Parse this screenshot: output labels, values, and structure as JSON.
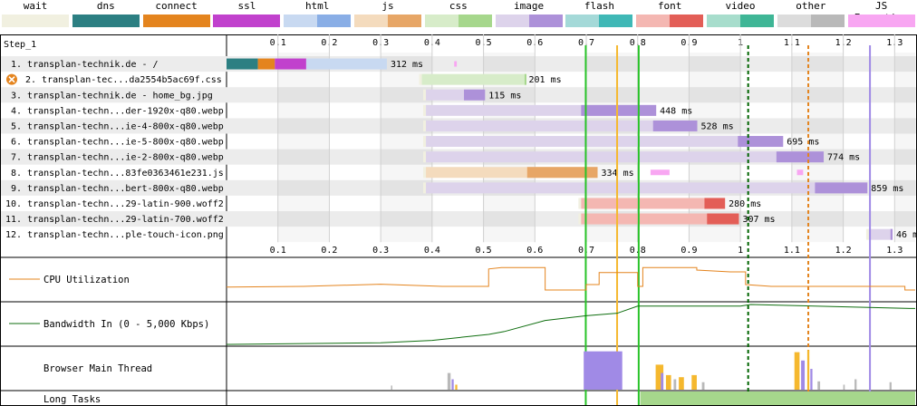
{
  "legend": [
    {
      "label": "wait",
      "light": "#f1f0e0",
      "dark": "#f1f0e0"
    },
    {
      "label": "dns",
      "light": "#2c7f82",
      "dark": "#2c7f82"
    },
    {
      "label": "connect",
      "light": "#e4841e",
      "dark": "#e4841e"
    },
    {
      "label": "ssl",
      "light": "#c141cd",
      "dark": "#c141cd"
    },
    {
      "label": "html",
      "light": "#c8d9f1",
      "dark": "#89aee6"
    },
    {
      "label": "js",
      "light": "#f4dbbd",
      "dark": "#e7a666"
    },
    {
      "label": "css",
      "light": "#d7ecc9",
      "dark": "#a6d78c"
    },
    {
      "label": "image",
      "light": "#ddd3eb",
      "dark": "#ad91d9"
    },
    {
      "label": "flash",
      "light": "#a4d9d8",
      "dark": "#3fb8b6"
    },
    {
      "label": "font",
      "light": "#f4b7b2",
      "dark": "#e35e57"
    },
    {
      "label": "video",
      "light": "#a7ddcc",
      "dark": "#3fb696"
    },
    {
      "label": "other",
      "light": "#dcdcdc",
      "dark": "#b9b9b9"
    },
    {
      "label": "JS Execution",
      "light": "#f8a6f2",
      "dark": "#f8a6f2"
    }
  ],
  "step_label": "Step_1",
  "chart_data": {
    "type": "bar",
    "title": "",
    "x_unit": "s",
    "xlim": [
      0,
      1.34
    ],
    "ticks": [
      "0.1",
      "0.2",
      "0.3",
      "0.4",
      "0.5",
      "0.6",
      "0.7",
      "0.8",
      "0.9",
      "1",
      "1.1",
      "1.2",
      "1.3"
    ],
    "requests": [
      {
        "num": "1.",
        "label": "transplan-technik.de - /",
        "type": "html",
        "start": 0.0,
        "end": 0.312,
        "duration": "312 ms",
        "dns": [
          0.0,
          0.061
        ],
        "connect": [
          0.061,
          0.094
        ],
        "ssl": [
          0.094,
          0.155
        ],
        "ttfb_end": 0.155,
        "error": false
      },
      {
        "num": "2.",
        "label": "transplan-tec...da2554b5ac69f.css",
        "type": "css",
        "start": 0.38,
        "end": 0.581,
        "duration": "201 ms",
        "ttfb_end": 0.58,
        "error": true
      },
      {
        "num": "3.",
        "label": "transplan-technik.de - home_bg.jpg",
        "type": "image",
        "start": 0.388,
        "end": 0.503,
        "duration": "115 ms",
        "ttfb_end": 0.462,
        "error": false
      },
      {
        "num": "4.",
        "label": "transplan-techn...der-1920x-q80.webp",
        "type": "image",
        "start": 0.388,
        "end": 0.836,
        "duration": "448 ms",
        "ttfb_end": 0.69,
        "error": false
      },
      {
        "num": "5.",
        "label": "transplan-techn...ie-4-800x-q80.webp",
        "type": "image",
        "start": 0.388,
        "end": 0.916,
        "duration": "528 ms",
        "ttfb_end": 0.83,
        "error": false
      },
      {
        "num": "6.",
        "label": "transplan-techn...ie-5-800x-q80.webp",
        "type": "image",
        "start": 0.388,
        "end": 1.083,
        "duration": "695 ms",
        "ttfb_end": 0.995,
        "error": false
      },
      {
        "num": "7.",
        "label": "transplan-techn...ie-2-800x-q80.webp",
        "type": "image",
        "start": 0.388,
        "end": 1.162,
        "duration": "774 ms",
        "ttfb_end": 1.07,
        "error": false
      },
      {
        "num": "8.",
        "label": "transplan-techn...83fe0363461e231.js",
        "type": "js",
        "start": 0.388,
        "end": 0.722,
        "duration": "334 ms",
        "ttfb_end": 0.585,
        "error": false
      },
      {
        "num": "9.",
        "label": "transplan-techn...bert-800x-q80.webp",
        "type": "image",
        "start": 0.388,
        "end": 1.247,
        "duration": "859 ms",
        "ttfb_end": 1.145,
        "error": false
      },
      {
        "num": "10.",
        "label": "transplan-techn...29-latin-900.woff2",
        "type": "font",
        "start": 0.69,
        "end": 0.97,
        "duration": "280 ms",
        "ttfb_end": 0.93,
        "error": false
      },
      {
        "num": "11.",
        "label": "transplan-techn...29-latin-700.woff2",
        "type": "font",
        "start": 0.69,
        "end": 0.997,
        "duration": "307 ms",
        "ttfb_end": 0.935,
        "error": false
      },
      {
        "num": "12.",
        "label": "transplan-techn...ple-touch-icon.png",
        "type": "image",
        "start": 1.25,
        "end": 1.296,
        "duration": "46 ms",
        "ttfb_end": 1.292,
        "error": false
      }
    ],
    "markers": [
      {
        "t": 0.699,
        "color": "#28c328",
        "style": "solid"
      },
      {
        "t": 0.76,
        "color": "#f5b82e",
        "style": "solid"
      },
      {
        "t": 0.802,
        "color": "#28c328",
        "style": "solid"
      },
      {
        "t": 1.015,
        "color": "#006400",
        "style": "dashed"
      },
      {
        "t": 1.132,
        "color": "#e4841e",
        "style": "dashed"
      },
      {
        "t": 1.252,
        "color": "#a08ae6",
        "style": "solid"
      }
    ],
    "js_exec_marks": [
      {
        "row": 0,
        "t": [
          0.443,
          0.448
        ]
      },
      {
        "row": 7,
        "t": [
          0.825,
          0.862
        ]
      },
      {
        "row": 7,
        "t": [
          1.11,
          1.122
        ]
      }
    ],
    "cpu": {
      "label": "CPU Utilization",
      "color": "#e4841e",
      "points": [
        [
          0,
          0.28
        ],
        [
          0.15,
          0.3
        ],
        [
          0.3,
          0.36
        ],
        [
          0.42,
          0.3
        ],
        [
          0.51,
          0.3
        ],
        [
          0.51,
          0.78
        ],
        [
          0.535,
          0.82
        ],
        [
          0.62,
          0.82
        ],
        [
          0.62,
          0.2
        ],
        [
          0.7,
          0.2
        ],
        [
          0.7,
          0.35
        ],
        [
          0.725,
          0.35
        ],
        [
          0.725,
          0.68
        ],
        [
          0.8,
          0.68
        ],
        [
          0.8,
          0.3
        ],
        [
          0.81,
          0.3
        ],
        [
          0.81,
          0.82
        ],
        [
          0.915,
          0.82
        ],
        [
          0.915,
          0.75
        ],
        [
          0.98,
          0.7
        ],
        [
          1.01,
          0.7
        ],
        [
          1.01,
          0.35
        ],
        [
          1.06,
          0.3
        ],
        [
          1.32,
          0.3
        ],
        [
          1.32,
          0.2
        ],
        [
          1.34,
          0.2
        ]
      ]
    },
    "bandwidth": {
      "label": "Bandwidth In (0 - 5,000 Kbps)",
      "color": "#0f6e0f",
      "points": [
        [
          0,
          0.0
        ],
        [
          0.15,
          0.02
        ],
        [
          0.3,
          0.04
        ],
        [
          0.4,
          0.1
        ],
        [
          0.51,
          0.25
        ],
        [
          0.54,
          0.32
        ],
        [
          0.62,
          0.6
        ],
        [
          0.7,
          0.72
        ],
        [
          0.76,
          0.78
        ],
        [
          0.8,
          0.96
        ],
        [
          1.0,
          0.96
        ],
        [
          1.02,
          1.0
        ],
        [
          1.33,
          0.9
        ],
        [
          1.34,
          0.9
        ]
      ]
    },
    "main_thread": {
      "label": "Browser Main Thread",
      "colors": {
        "script": "#f5b82e",
        "layout": "#a08ae6",
        "paint": "#28c328",
        "other": "#b9b9b9"
      },
      "blocks": [
        {
          "t0": 0.695,
          "t1": 0.77,
          "h": 0.92,
          "c": "layout"
        },
        {
          "t0": 0.835,
          "t1": 0.85,
          "h": 0.6,
          "c": "script"
        },
        {
          "t0": 0.855,
          "t1": 0.865,
          "h": 0.35,
          "c": "script"
        },
        {
          "t0": 0.845,
          "t1": 0.85,
          "h": 0.4,
          "c": "layout"
        },
        {
          "t0": 0.87,
          "t1": 0.875,
          "h": 0.25,
          "c": "other"
        },
        {
          "t0": 0.88,
          "t1": 0.89,
          "h": 0.3,
          "c": "script"
        },
        {
          "t0": 0.905,
          "t1": 0.915,
          "h": 0.35,
          "c": "script"
        },
        {
          "t0": 1.105,
          "t1": 1.115,
          "h": 0.9,
          "c": "script"
        },
        {
          "t0": 1.118,
          "t1": 1.125,
          "h": 0.7,
          "c": "layout"
        },
        {
          "t0": 1.13,
          "t1": 1.134,
          "h": 0.95,
          "c": "script"
        },
        {
          "t0": 1.136,
          "t1": 1.14,
          "h": 0.5,
          "c": "layout"
        },
        {
          "t0": 0.43,
          "t1": 0.436,
          "h": 0.4,
          "c": "other"
        },
        {
          "t0": 0.438,
          "t1": 0.442,
          "h": 0.25,
          "c": "layout"
        },
        {
          "t0": 0.445,
          "t1": 0.449,
          "h": 0.12,
          "c": "script"
        },
        {
          "t0": 0.32,
          "t1": 0.322,
          "h": 0.1,
          "c": "other"
        },
        {
          "t0": 1.222,
          "t1": 1.226,
          "h": 0.25,
          "c": "other"
        },
        {
          "t0": 1.2,
          "t1": 1.203,
          "h": 0.12,
          "c": "other"
        },
        {
          "t0": 1.29,
          "t1": 1.294,
          "h": 0.18,
          "c": "other"
        },
        {
          "t0": 0.925,
          "t1": 0.93,
          "h": 0.18,
          "c": "other"
        },
        {
          "t0": 1.15,
          "t1": 1.155,
          "h": 0.2,
          "c": "other"
        }
      ]
    },
    "long_tasks": {
      "label": "Long Tasks",
      "color": "#a6d78c",
      "spans": [
        [
          0.805,
          1.34
        ]
      ]
    }
  }
}
